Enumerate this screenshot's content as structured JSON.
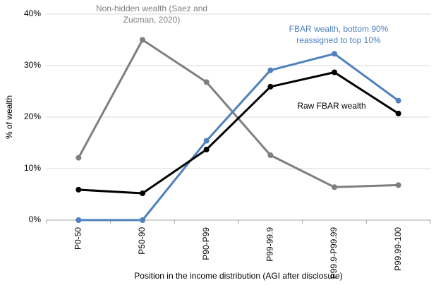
{
  "chart_data": {
    "type": "line",
    "y_label": "% of wealth",
    "x_label": "Position in the income distribution (AGI after disclosure)",
    "categories": [
      "P0-50",
      "P50-90",
      "P90-P99",
      "P99-99.9",
      "P99.9-P99.99",
      "P99.99-100"
    ],
    "series": [
      {
        "name": "Non-hidden wealth (Saez and Zucman, 2020)",
        "color": "#7f7f7f",
        "values": [
          12.1,
          35.0,
          26.8,
          12.6,
          6.4,
          6.8
        ]
      },
      {
        "name": "FBAR wealth, bottom 90% reassigned to top 10%",
        "color": "#4f81bd",
        "values": [
          0,
          0,
          15.4,
          29.1,
          32.3,
          23.2
        ]
      },
      {
        "name": "Raw FBAR wealth",
        "color": "#000000",
        "values": [
          5.9,
          5.2,
          13.7,
          25.9,
          28.7,
          20.7
        ]
      }
    ],
    "ylim": [
      0,
      40
    ],
    "yticks": [
      {
        "value": 0,
        "label": "0%"
      },
      {
        "value": 10,
        "label": "10%"
      },
      {
        "value": 20,
        "label": "20%"
      },
      {
        "value": 30,
        "label": "30%"
      },
      {
        "value": 40,
        "label": "40%"
      }
    ],
    "grid": true
  }
}
